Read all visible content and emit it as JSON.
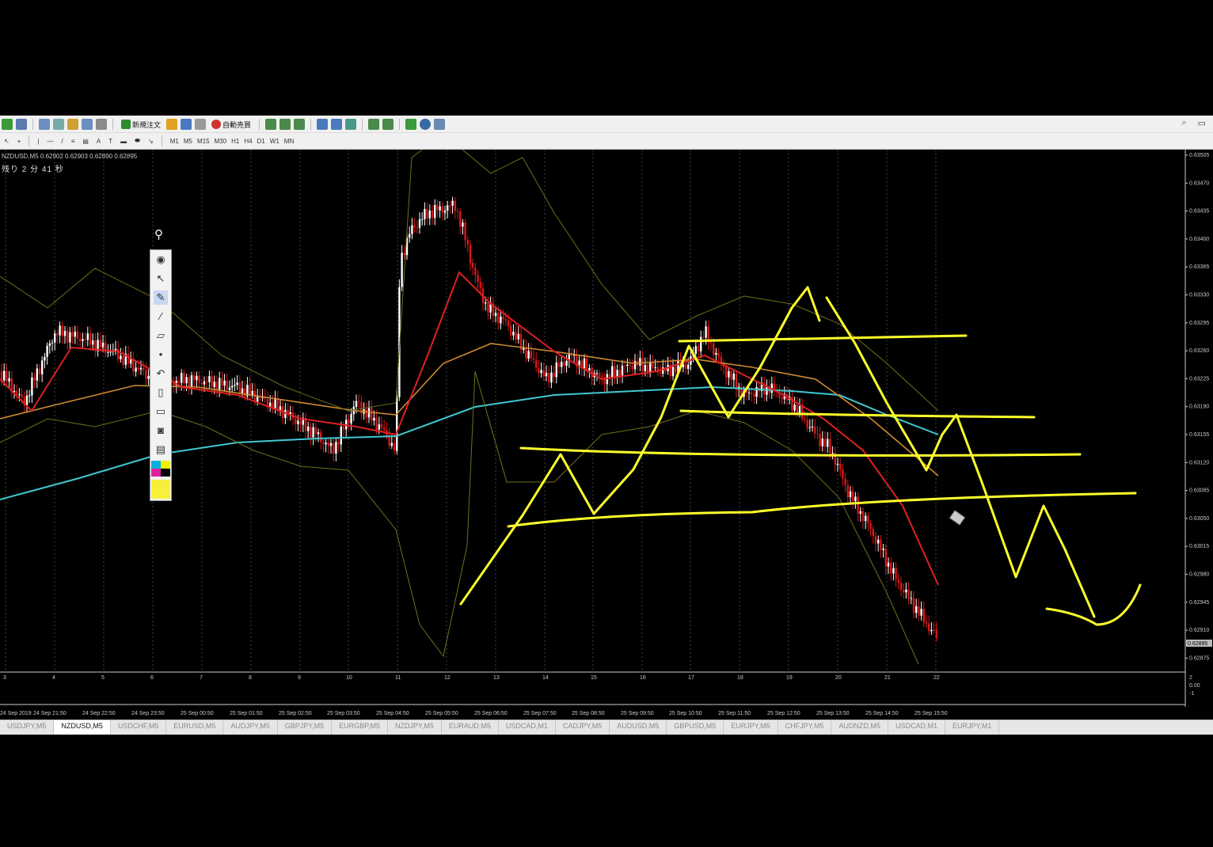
{
  "toolbar": {
    "new_order_label": "新規注文",
    "auto_trade_label": "自動売買",
    "timeframes": [
      "M1",
      "M5",
      "M15",
      "M30",
      "H1",
      "H4",
      "D1",
      "W1",
      "MN"
    ]
  },
  "chart": {
    "symbol_info": "NZDUSD,M5  0.62902 0.62903 0.62890 0.62895",
    "countdown": "残り 2 分 41 秒",
    "price_labels": [
      "0.63505",
      "0.63470",
      "0.63435",
      "0.63400",
      "0.63365",
      "0.63330",
      "0.63295",
      "0.63260",
      "0.63225",
      "0.63190",
      "0.63155",
      "0.63120",
      "0.63085",
      "0.63050",
      "0.63015",
      "0.62980",
      "0.62945",
      "0.62910",
      "0.62875"
    ],
    "current_price": "0.62895",
    "lower_scale": [
      "2",
      "0.00",
      "-1"
    ],
    "day_labels": [
      "3",
      "4",
      "5",
      "6",
      "7",
      "8",
      "9",
      "10",
      "11",
      "12",
      "13",
      "14",
      "15",
      "16",
      "17",
      "18",
      "19",
      "20",
      "21",
      "22"
    ],
    "time_labels": [
      "24 Sep 2019",
      "24 Sep 21:50",
      "24 Sep 22:50",
      "24 Sep 23:50",
      "25 Sep 00:50",
      "25 Sep 01:50",
      "25 Sep 02:50",
      "25 Sep 03:50",
      "25 Sep 04:50",
      "25 Sep 05:50",
      "25 Sep 06:50",
      "25 Sep 07:50",
      "25 Sep 08:50",
      "25 Sep 09:50",
      "25 Sep 10:50",
      "25 Sep 11:50",
      "25 Sep 12:50",
      "25 Sep 13:50",
      "25 Sep 14:50",
      "25 Sep 15:50"
    ]
  },
  "tabs": [
    "USDJPY,M5",
    "NZDUSD,M5",
    "USDCHF,M5",
    "EURUSD,M5",
    "AUDJPY,M5",
    "GBPJPY,M5",
    "EURGBP,M5",
    "NZDJPY,M5",
    "EURAUD,M5",
    "USDCAD,M1",
    "CADJPY,M5",
    "AUDUSD,M5",
    "GBPUSD,M5",
    "EURJPY,M5",
    "CHFJPY,M5",
    "AUDNZD,M5",
    "USDCAD,M1",
    "EURJPY,M1"
  ],
  "active_tab": "NZDUSD,M5",
  "colors": {
    "annotation": "#ffff2a",
    "ma_cyan": "#40c8d0",
    "ma_orange": "#d08a30",
    "ma_red": "#e02020",
    "bollinger": "#707018",
    "bear_candle": "#d81818",
    "bull_candle": "#ffffff"
  },
  "drawing_tools": [
    "eye-icon",
    "pointer-icon",
    "highlighter-icon",
    "pen-icon",
    "eraser-icon",
    "dot-icon",
    "undo-icon",
    "trash-icon",
    "screen-icon",
    "camera-icon",
    "clipboard-icon",
    "palette-icon",
    "fill-color-icon"
  ]
}
